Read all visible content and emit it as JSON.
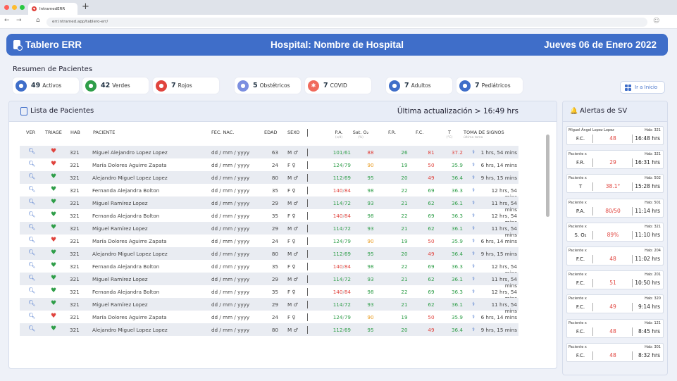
{
  "browser": {
    "tab_title": "IntramedERR",
    "url": "err.intramed.app/tablero-err/"
  },
  "header": {
    "title": "Tablero ERR",
    "hospital": "Hospital: Nombre de Hospital",
    "date": "Jueves 06 de Enero 2022"
  },
  "summary": {
    "title": "Resumen de Pacientes",
    "items": [
      {
        "count": "49",
        "label": "Activos"
      },
      {
        "count": "42",
        "label": "Verdes"
      },
      {
        "count": "7",
        "label": "Rojos"
      },
      {
        "count": "5",
        "label": "Obstétricos"
      },
      {
        "count": "7",
        "label": "COVID"
      },
      {
        "count": "7",
        "label": "Adultos"
      },
      {
        "count": "7",
        "label": "Pediátricos"
      }
    ],
    "ir_inicio": "Ir a Inicio"
  },
  "patients_panel": {
    "title": "Lista de Pacientes",
    "updated": "Última actualización > 16:49 hrs",
    "columns": {
      "ver": "VER",
      "triage": "TRIAGE",
      "hab": "HAB",
      "paciente": "PACIENTE",
      "fec": "FEC. NAC.",
      "edad": "EDAD",
      "sexo": "SEXO",
      "pa": "P.A.",
      "pa_unit": "(s/d)",
      "sat": "Sat. O₂",
      "sat_unit": "(%)",
      "fr": "F.R.",
      "fc": "F.C.",
      "t": "T",
      "t_unit": "(°C)",
      "toma": "TOMA DE SIGNOS",
      "toma_sub": "última toma"
    },
    "rows": [
      {
        "triage": "red",
        "hab": "321",
        "name": "Miguel Alejandro Lopez Lopez",
        "fec": "dd / mm / yyyy",
        "edad": "63",
        "sexo": "M ♂",
        "pa_s": "101",
        "pa_d": "61",
        "pa_c": "green",
        "sat": "88",
        "sat_c": "red",
        "fr": "26",
        "fr_c": "green",
        "fc": "81",
        "fc_c": "red",
        "t": "37.2",
        "t_c": "red",
        "toma": "1 hrs, 54 mins"
      },
      {
        "triage": "red",
        "hab": "321",
        "name": "María Dolores Aguirre Zapata",
        "fec": "dd / mm / yyyy",
        "edad": "24",
        "sexo": "F ♀",
        "pa_s": "124",
        "pa_d": "79",
        "pa_c": "green",
        "sat": "90",
        "sat_c": "orange",
        "fr": "19",
        "fr_c": "green",
        "fc": "50",
        "fc_c": "red",
        "t": "35.9",
        "t_c": "green",
        "toma": "6 hrs, 14 mins"
      },
      {
        "triage": "green",
        "hab": "321",
        "name": "Alejandro Miguel Lopez Lopez",
        "fec": "dd / mm / yyyy",
        "edad": "80",
        "sexo": "M ♂",
        "pa_s": "112",
        "pa_d": "69",
        "pa_c": "green",
        "sat": "95",
        "sat_c": "green",
        "fr": "20",
        "fr_c": "green",
        "fc": "49",
        "fc_c": "red",
        "t": "36.4",
        "t_c": "green",
        "toma": "9 hrs, 15 mins"
      },
      {
        "triage": "green",
        "hab": "321",
        "name": "Fernanda Alejandra Bolton",
        "fec": "dd / mm / yyyy",
        "edad": "35",
        "sexo": "F ♀",
        "pa_s": "140",
        "pa_d": "84",
        "pa_c": "red",
        "sat": "98",
        "sat_c": "green",
        "fr": "22",
        "fr_c": "green",
        "fc": "69",
        "fc_c": "green",
        "t": "36.3",
        "t_c": "green",
        "toma": "12 hrs, 54 mins"
      },
      {
        "triage": "green",
        "hab": "321",
        "name": "Miguel Ramírez Lopez",
        "fec": "dd / mm / yyyy",
        "edad": "29",
        "sexo": "M ♂",
        "pa_s": "114",
        "pa_d": "72",
        "pa_c": "green",
        "sat": "93",
        "sat_c": "green",
        "fr": "21",
        "fr_c": "green",
        "fc": "62",
        "fc_c": "green",
        "t": "36.1",
        "t_c": "green",
        "toma": "11 hrs, 54 mins"
      },
      {
        "triage": "green",
        "hab": "321",
        "name": "Fernanda Alejandra Bolton",
        "fec": "dd / mm / yyyy",
        "edad": "35",
        "sexo": "F ♀",
        "pa_s": "140",
        "pa_d": "84",
        "pa_c": "red",
        "sat": "98",
        "sat_c": "green",
        "fr": "22",
        "fr_c": "green",
        "fc": "69",
        "fc_c": "green",
        "t": "36.3",
        "t_c": "green",
        "toma": "12 hrs, 54 mins"
      },
      {
        "triage": "green",
        "hab": "321",
        "name": "Miguel Ramírez Lopez",
        "fec": "dd / mm / yyyy",
        "edad": "29",
        "sexo": "M ♂",
        "pa_s": "114",
        "pa_d": "72",
        "pa_c": "green",
        "sat": "93",
        "sat_c": "green",
        "fr": "21",
        "fr_c": "green",
        "fc": "62",
        "fc_c": "green",
        "t": "36.1",
        "t_c": "green",
        "toma": "11 hrs, 54 mins"
      },
      {
        "triage": "red",
        "hab": "321",
        "name": "María Dolores Aguirre Zapata",
        "fec": "dd / mm / yyyy",
        "edad": "24",
        "sexo": "F ♀",
        "pa_s": "124",
        "pa_d": "79",
        "pa_c": "green",
        "sat": "90",
        "sat_c": "orange",
        "fr": "19",
        "fr_c": "green",
        "fc": "50",
        "fc_c": "red",
        "t": "35.9",
        "t_c": "green",
        "toma": "6 hrs, 14 mins"
      },
      {
        "triage": "green",
        "hab": "321",
        "name": "Alejandro Miguel Lopez Lopez",
        "fec": "dd / mm / yyyy",
        "edad": "80",
        "sexo": "M ♂",
        "pa_s": "112",
        "pa_d": "69",
        "pa_c": "green",
        "sat": "95",
        "sat_c": "green",
        "fr": "20",
        "fr_c": "green",
        "fc": "49",
        "fc_c": "red",
        "t": "36.4",
        "t_c": "green",
        "toma": "9 hrs, 15 mins"
      },
      {
        "triage": "green",
        "hab": "321",
        "name": "Fernanda Alejandra Bolton",
        "fec": "dd / mm / yyyy",
        "edad": "35",
        "sexo": "F ♀",
        "pa_s": "140",
        "pa_d": "84",
        "pa_c": "red",
        "sat": "98",
        "sat_c": "green",
        "fr": "22",
        "fr_c": "green",
        "fc": "69",
        "fc_c": "green",
        "t": "36.3",
        "t_c": "green",
        "toma": "12 hrs, 54 mins"
      },
      {
        "triage": "green",
        "hab": "321",
        "name": "Miguel Ramírez Lopez",
        "fec": "dd / mm / yyyy",
        "edad": "29",
        "sexo": "M ♂",
        "pa_s": "114",
        "pa_d": "72",
        "pa_c": "green",
        "sat": "93",
        "sat_c": "green",
        "fr": "21",
        "fr_c": "green",
        "fc": "62",
        "fc_c": "green",
        "t": "36.1",
        "t_c": "green",
        "toma": "11 hrs, 54 mins"
      },
      {
        "triage": "green",
        "hab": "321",
        "name": "Fernanda Alejandra Bolton",
        "fec": "dd / mm / yyyy",
        "edad": "35",
        "sexo": "F ♀",
        "pa_s": "140",
        "pa_d": "84",
        "pa_c": "red",
        "sat": "98",
        "sat_c": "green",
        "fr": "22",
        "fr_c": "green",
        "fc": "69",
        "fc_c": "green",
        "t": "36.3",
        "t_c": "green",
        "toma": "12 hrs, 54 mins"
      },
      {
        "triage": "green",
        "hab": "321",
        "name": "Miguel Ramírez Lopez",
        "fec": "dd / mm / yyyy",
        "edad": "29",
        "sexo": "M ♂",
        "pa_s": "114",
        "pa_d": "72",
        "pa_c": "green",
        "sat": "93",
        "sat_c": "green",
        "fr": "21",
        "fr_c": "green",
        "fc": "62",
        "fc_c": "green",
        "t": "36.1",
        "t_c": "green",
        "toma": "11 hrs, 54 mins"
      },
      {
        "triage": "red",
        "hab": "321",
        "name": "María Dolores Aguirre Zapata",
        "fec": "dd / mm / yyyy",
        "edad": "24",
        "sexo": "F ♀",
        "pa_s": "124",
        "pa_d": "79",
        "pa_c": "green",
        "sat": "90",
        "sat_c": "orange",
        "fr": "19",
        "fr_c": "green",
        "fc": "50",
        "fc_c": "red",
        "t": "35.9",
        "t_c": "green",
        "toma": "6 hrs, 14 mins"
      },
      {
        "triage": "green",
        "hab": "321",
        "name": "Alejandro Miguel Lopez Lopez",
        "fec": "dd / mm / yyyy",
        "edad": "80",
        "sexo": "M ♂",
        "pa_s": "112",
        "pa_d": "69",
        "pa_c": "green",
        "sat": "95",
        "sat_c": "green",
        "fr": "20",
        "fr_c": "green",
        "fc": "49",
        "fc_c": "red",
        "t": "36.4",
        "t_c": "green",
        "toma": "9 hrs, 15 mins"
      }
    ]
  },
  "alerts_panel": {
    "title": "Alertas de SV",
    "alerts": [
      {
        "name": "Miguel Ángel Lopez Lopez",
        "hab": "Hab: 321",
        "label": "F.C.",
        "value": "48",
        "time": "16:48 hrs"
      },
      {
        "name": "Paciente x",
        "hab": "Hab: 321",
        "label": "F.R.",
        "value": "29",
        "time": "16:31 hrs"
      },
      {
        "name": "Paciente x",
        "hab": "Hab: 502",
        "label": "T",
        "value": "38.1°",
        "time": "15:28 hrs"
      },
      {
        "name": "Paciente x",
        "hab": "Hab: 501",
        "label": "P.A.",
        "value": "80/50",
        "time": "11:14 hrs"
      },
      {
        "name": "Paciente x",
        "hab": "Hab: 321",
        "label": "S. O₂",
        "value": "89%",
        "time": "11:10 hrs"
      },
      {
        "name": "Paciente x",
        "hab": "Hab: 204",
        "label": "F.C.",
        "value": "48",
        "time": "11:02 hrs"
      },
      {
        "name": "Paciente x",
        "hab": "Hab: 201",
        "label": "F.C.",
        "value": "51",
        "time": "10:50 hrs"
      },
      {
        "name": "Paciente x",
        "hab": "Hab: 320",
        "label": "F.C.",
        "value": "49",
        "time": "9:14 hrs"
      },
      {
        "name": "Paciente x",
        "hab": "Hab: 121",
        "label": "F.C.",
        "value": "48",
        "time": "8:45 hrs"
      },
      {
        "name": "Paciente x",
        "hab": "Hab: 301",
        "label": "F.C.",
        "value": "48",
        "time": "8:32 hrs"
      }
    ]
  },
  "colors": {
    "primary": "#3f6ec9",
    "red": "#e0443e",
    "green": "#2f9e49",
    "orange": "#e89a1d"
  }
}
